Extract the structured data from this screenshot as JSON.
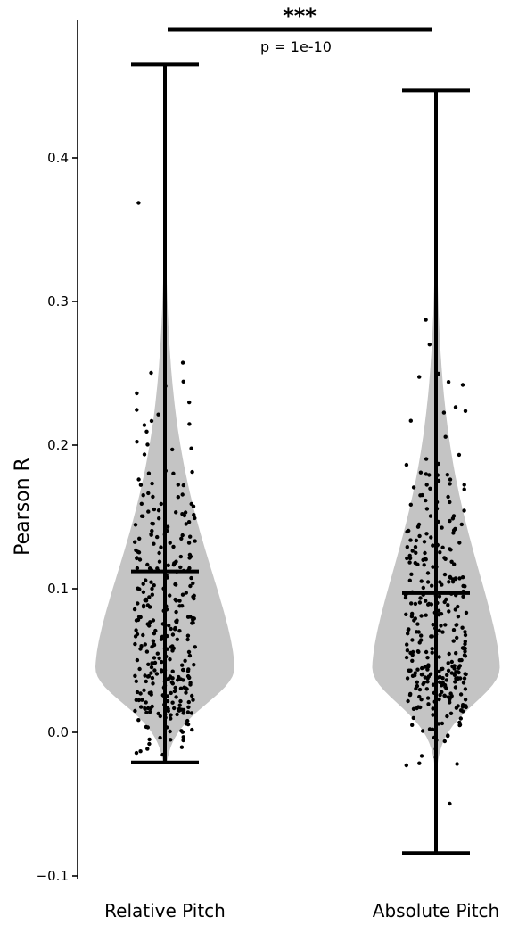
{
  "chart_data": {
    "type": "violin",
    "ylabel": "Pearson R",
    "ylim": [
      -0.1,
      0.47
    ],
    "yticks": [
      -0.1,
      0.0,
      0.1,
      0.2,
      0.3,
      0.4
    ],
    "ytick_labels": [
      "−0.1",
      "0.0",
      "0.1",
      "0.2",
      "0.3",
      "0.4"
    ],
    "violin_color": "#c4c4c4",
    "point_color": "#000000",
    "groups": [
      {
        "label": "Relative Pitch",
        "min": -0.021,
        "max": 0.465,
        "median": 0.112,
        "mode": 0.045,
        "density_width": 0.48
      },
      {
        "label": "Absolute Pitch",
        "min": -0.084,
        "max": 0.447,
        "median": 0.097,
        "mode": 0.045,
        "density_width": 0.44
      }
    ],
    "significance": {
      "stars": "***",
      "p_text": "p = 1e-10"
    }
  }
}
